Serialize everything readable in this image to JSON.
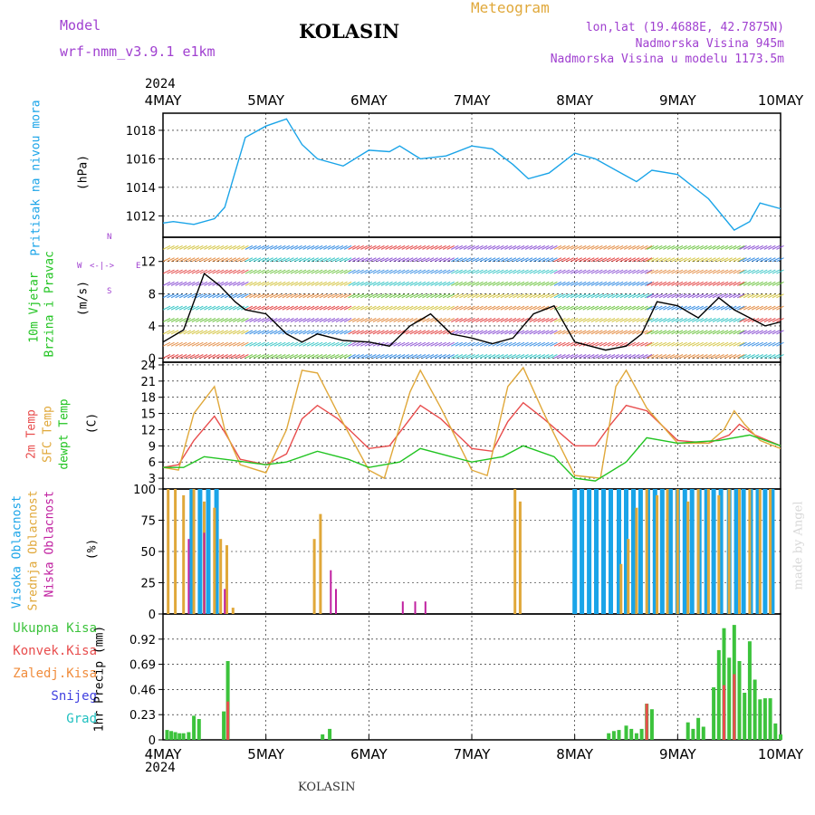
{
  "header": {
    "model_label": "Model",
    "model_name": "wrf-nmm_v3.9.1  e1km",
    "station": "KOLASIN",
    "product": "Meteogram",
    "lonlat": "lon,lat (19.4688E, 42.7875N)",
    "elevation": "Nadmorska Visina 945m",
    "model_elevation": "Nadmorska Visina u modelu 1173.5m",
    "year": "2024",
    "footer_station": "KOLASIN",
    "credit": "made by Angel"
  },
  "x_axis": {
    "ticks": [
      "4MAY",
      "5MAY",
      "6MAY",
      "7MAY",
      "8MAY",
      "9MAY",
      "10MAY"
    ],
    "tick_days": [
      0,
      1,
      2,
      3,
      4,
      5,
      6
    ],
    "range_days": [
      0,
      6
    ]
  },
  "colors": {
    "pressure": "#1aa4e8",
    "temp2m": "#e84d4d",
    "sfc_temp": "#e0a83a",
    "dewpt": "#22c422",
    "cloud_high": "#1aa4e8",
    "cloud_mid": "#e0a83a",
    "cloud_low": "#c020a0",
    "precip_total": "#3cc33c",
    "precip_conv": "#e84d4d",
    "precip_frz": "#f08c3c",
    "snow": "#4040e0",
    "grad": "#20c0c0",
    "wind_label": "#22c422",
    "dir_label": "#a040d0"
  },
  "labels": {
    "pressure": [
      "Pritisak na nivou mora",
      "(hPa)"
    ],
    "wind": [
      "10m Vjetar",
      "Brzina i Pravac",
      "(m/s)"
    ],
    "wind_dirs": {
      "n": "N",
      "s": "S",
      "e": "E",
      "w": "W"
    },
    "temp": [
      "2m Temp",
      "SFC Temp",
      "dewpt Temp",
      "(C)"
    ],
    "cloud": [
      "Visoka Oblacnost",
      "Srednja Oblacnost",
      "Niska Oblacnost",
      "(%)"
    ],
    "precip": [
      "Ukupna Kisa",
      "Konvek.Kisa",
      "Zaledj.Kisa",
      "Snijeg",
      "Grad",
      "1hr Precip (mm)"
    ]
  },
  "chart_data": [
    {
      "type": "line",
      "title": "",
      "ylabel": "Pritisak na nivou mora (hPa)",
      "ylim": [
        1010.5,
        1019.2
      ],
      "yticks": [
        1012,
        1014,
        1016,
        1018
      ],
      "series": [
        {
          "name": "Pritisak na nivou mora",
          "x": [
            0,
            0.1,
            0.3,
            0.5,
            0.6,
            0.8,
            1.0,
            1.2,
            1.35,
            1.5,
            1.75,
            2.0,
            2.2,
            2.3,
            2.5,
            2.75,
            3.0,
            3.2,
            3.4,
            3.55,
            3.75,
            4.0,
            4.2,
            4.45,
            4.6,
            4.75,
            5.0,
            5.3,
            5.55,
            5.7,
            5.8,
            6.0
          ],
          "y": [
            1011.5,
            1011.6,
            1011.4,
            1011.8,
            1012.6,
            1017.5,
            1018.3,
            1018.8,
            1017.0,
            1016.0,
            1015.5,
            1016.6,
            1016.5,
            1016.9,
            1016.0,
            1016.2,
            1016.9,
            1016.7,
            1015.6,
            1014.6,
            1015.0,
            1016.4,
            1016.0,
            1015.0,
            1014.4,
            1015.2,
            1014.9,
            1013.2,
            1011.0,
            1011.6,
            1012.9,
            1012.5
          ]
        }
      ]
    },
    {
      "type": "line",
      "title": "",
      "ylabel": "10m Vjetar Brzina i Pravac (m/s)",
      "ylim": [
        -0.5,
        15
      ],
      "yticks": [
        0,
        4,
        8,
        12
      ],
      "series": [
        {
          "name": "10m Vjetar",
          "x": [
            0,
            0.2,
            0.4,
            0.55,
            0.7,
            0.8,
            1.0,
            1.2,
            1.35,
            1.5,
            1.75,
            2.0,
            2.2,
            2.4,
            2.6,
            2.8,
            3.0,
            3.2,
            3.4,
            3.6,
            3.8,
            4.0,
            4.3,
            4.5,
            4.65,
            4.8,
            5.0,
            5.2,
            5.4,
            5.55,
            5.7,
            5.85,
            6.0
          ],
          "y": [
            2.0,
            3.5,
            10.5,
            9.0,
            7.0,
            6.0,
            5.5,
            3.0,
            2.0,
            3.0,
            2.2,
            2.0,
            1.5,
            4.0,
            5.5,
            3.0,
            2.5,
            1.8,
            2.5,
            5.5,
            6.5,
            2.0,
            1.0,
            1.5,
            3.0,
            7.0,
            6.5,
            5.0,
            7.5,
            6.0,
            5.0,
            4.0,
            4.5
          ]
        }
      ]
    },
    {
      "type": "line",
      "title": "",
      "ylabel": "(C)",
      "ylim": [
        1,
        24.5
      ],
      "yticks": [
        3,
        6,
        9,
        12,
        15,
        18,
        21,
        24
      ],
      "series": [
        {
          "name": "2m Temp",
          "x": [
            0,
            0.15,
            0.3,
            0.5,
            0.6,
            0.75,
            1.0,
            1.2,
            1.35,
            1.5,
            1.7,
            2.0,
            2.2,
            2.4,
            2.5,
            2.7,
            3.0,
            3.2,
            3.35,
            3.5,
            3.7,
            4.0,
            4.2,
            4.35,
            4.5,
            4.7,
            5.0,
            5.3,
            5.5,
            5.6,
            5.75,
            6.0
          ],
          "y": [
            5.0,
            5.5,
            10.0,
            14.5,
            11.5,
            6.5,
            5.5,
            7.5,
            14.0,
            16.5,
            14.0,
            8.5,
            9.0,
            14.0,
            16.5,
            14.0,
            8.5,
            8.0,
            13.5,
            17.0,
            14.0,
            9.0,
            9.0,
            13.0,
            16.5,
            15.5,
            10.0,
            9.5,
            11.0,
            13.0,
            11.0,
            9.0
          ]
        },
        {
          "name": "SFC Temp",
          "x": [
            0,
            0.15,
            0.3,
            0.5,
            0.6,
            0.75,
            1.0,
            1.2,
            1.35,
            1.5,
            1.7,
            2.0,
            2.15,
            2.4,
            2.5,
            2.7,
            3.0,
            3.15,
            3.35,
            3.5,
            3.7,
            4.0,
            4.25,
            4.4,
            4.5,
            4.7,
            5.0,
            5.3,
            5.45,
            5.55,
            5.65,
            5.8,
            6.0
          ],
          "y": [
            5.0,
            4.5,
            15.0,
            20.0,
            12.0,
            5.5,
            4.0,
            12.0,
            23.0,
            22.5,
            15.0,
            4.5,
            3.0,
            19.0,
            23.0,
            16.0,
            4.5,
            3.5,
            20.0,
            23.5,
            15.0,
            3.5,
            3.0,
            20.0,
            23.0,
            16.0,
            9.5,
            9.5,
            12.0,
            15.5,
            13.0,
            10.0,
            8.5
          ]
        },
        {
          "name": "dewpt Temp",
          "x": [
            0,
            0.2,
            0.4,
            0.6,
            0.8,
            1.0,
            1.2,
            1.5,
            1.8,
            2.0,
            2.3,
            2.5,
            2.8,
            3.0,
            3.3,
            3.5,
            3.8,
            4.0,
            4.2,
            4.5,
            4.7,
            5.0,
            5.4,
            5.7,
            6.0
          ],
          "y": [
            5.0,
            5.0,
            7.0,
            6.5,
            6.0,
            5.5,
            6.0,
            8.0,
            6.5,
            5.0,
            6.0,
            8.5,
            7.0,
            6.0,
            7.0,
            9.0,
            7.0,
            3.0,
            2.5,
            6.0,
            10.5,
            9.5,
            10.0,
            11.0,
            9.0
          ]
        }
      ]
    },
    {
      "type": "bar",
      "title": "",
      "ylabel": "(%)",
      "ylim": [
        0,
        100
      ],
      "yticks": [
        0,
        25,
        50,
        75,
        100
      ],
      "series": [
        {
          "name": "Visoka Oblacnost",
          "x": [
            0.28,
            0.36,
            0.44,
            0.52,
            4.0,
            4.07,
            4.14,
            4.21,
            4.28,
            4.35,
            4.43,
            4.5,
            4.57,
            4.64,
            4.71,
            4.78,
            4.85,
            4.93,
            5.0,
            5.07,
            5.14,
            5.21,
            5.28,
            5.35,
            5.42,
            5.5,
            5.57,
            5.64,
            5.71,
            5.78,
            5.85,
            5.92
          ],
          "values": [
            100,
            100,
            100,
            100,
            100,
            100,
            100,
            100,
            100,
            100,
            100,
            100,
            100,
            100,
            100,
            100,
            100,
            100,
            100,
            100,
            100,
            100,
            100,
            100,
            100,
            100,
            100,
            100,
            100,
            100,
            100,
            100
          ]
        },
        {
          "name": "Srednja Oblacnost",
          "x": [
            0.05,
            0.12,
            0.2,
            0.3,
            0.4,
            0.5,
            0.56,
            0.62,
            0.68,
            1.47,
            1.53,
            3.42,
            3.47,
            4.45,
            4.52,
            4.6,
            4.7,
            4.8,
            4.9,
            5.0,
            5.1,
            5.2,
            5.3,
            5.4,
            5.5,
            5.6,
            5.7,
            5.8,
            5.9
          ],
          "values": [
            100,
            100,
            95,
            100,
            90,
            85,
            60,
            55,
            5,
            60,
            80,
            100,
            90,
            40,
            60,
            85,
            100,
            95,
            100,
            100,
            90,
            100,
            100,
            95,
            100,
            100,
            100,
            100,
            100
          ]
        },
        {
          "name": "Niska Oblacnost",
          "x": [
            0.25,
            0.4,
            0.6,
            1.63,
            1.68,
            2.33,
            2.45,
            2.55
          ],
          "values": [
            60,
            65,
            20,
            35,
            20,
            10,
            10,
            10
          ]
        }
      ]
    },
    {
      "type": "bar",
      "title": "",
      "ylabel": "1hr Precip (mm)",
      "ylim": [
        0,
        1.15
      ],
      "yticks": [
        0,
        0.23,
        0.46,
        0.69,
        0.92
      ],
      "series": [
        {
          "name": "Ukupna Kisa",
          "x": [
            0.04,
            0.08,
            0.12,
            0.16,
            0.2,
            0.25,
            0.3,
            0.35,
            0.59,
            0.63,
            1.55,
            1.62,
            4.33,
            4.38,
            4.43,
            4.5,
            4.55,
            4.6,
            4.65,
            4.7,
            4.75,
            5.1,
            5.15,
            5.2,
            5.25,
            5.35,
            5.4,
            5.45,
            5.5,
            5.55,
            5.6,
            5.65,
            5.7,
            5.75,
            5.8,
            5.85,
            5.9,
            5.95,
            6.0
          ],
          "values": [
            0.09,
            0.08,
            0.07,
            0.06,
            0.06,
            0.07,
            0.22,
            0.19,
            0.26,
            0.72,
            0.05,
            0.1,
            0.06,
            0.08,
            0.09,
            0.13,
            0.1,
            0.06,
            0.1,
            0.33,
            0.28,
            0.16,
            0.1,
            0.2,
            0.12,
            0.48,
            0.82,
            1.02,
            0.75,
            1.05,
            0.72,
            0.43,
            0.9,
            0.55,
            0.37,
            0.38,
            0.38,
            0.15,
            0.05
          ]
        },
        {
          "name": "Konvek.Kisa",
          "x": [
            0.63,
            4.7,
            5.45,
            5.55
          ],
          "values": [
            0.35,
            0.33,
            0.5,
            0.6
          ]
        },
        {
          "name": "Zaledj.Kisa",
          "x": [],
          "values": []
        }
      ]
    }
  ]
}
